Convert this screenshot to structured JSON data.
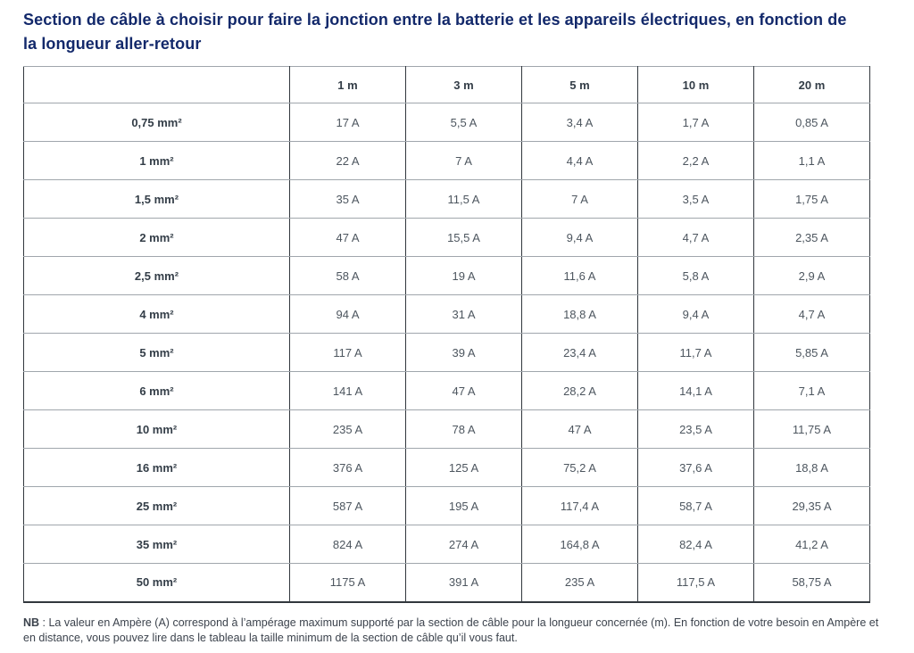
{
  "title": {
    "lines": [
      "Section de câble à choisir pour faire la jonction entre la batterie et les appareils électriques, en fonction de",
      "la longueur aller-retour"
    ]
  },
  "table": {
    "corner_label": "",
    "column_headers": [
      "1 m",
      "3 m",
      "5 m",
      "10 m",
      "20 m"
    ],
    "rows": [
      {
        "label": "0,75 mm²",
        "values": [
          "17 A",
          "5,5 A",
          "3,4 A",
          "1,7 A",
          "0,85 A"
        ]
      },
      {
        "label": "1 mm²",
        "values": [
          "22 A",
          "7 A",
          "4,4 A",
          "2,2 A",
          "1,1 A"
        ]
      },
      {
        "label": "1,5 mm²",
        "values": [
          "35 A",
          "11,5 A",
          "7 A",
          "3,5 A",
          "1,75 A"
        ]
      },
      {
        "label": "2 mm²",
        "values": [
          "47 A",
          "15,5 A",
          "9,4 A",
          "4,7 A",
          "2,35 A"
        ]
      },
      {
        "label": "2,5 mm²",
        "values": [
          "58 A",
          "19 A",
          "11,6 A",
          "5,8 A",
          "2,9 A"
        ]
      },
      {
        "label": "4 mm²",
        "values": [
          "94 A",
          "31 A",
          "18,8 A",
          "9,4 A",
          "4,7 A"
        ]
      },
      {
        "label": "5 mm²",
        "values": [
          "117 A",
          "39 A",
          "23,4 A",
          "11,7 A",
          "5,85 A"
        ]
      },
      {
        "label": "6 mm²",
        "values": [
          "141 A",
          "47 A",
          "28,2 A",
          "14,1 A",
          "7,1 A"
        ]
      },
      {
        "label": "10 mm²",
        "values": [
          "235 A",
          "78 A",
          "47 A",
          "23,5 A",
          "11,75 A"
        ]
      },
      {
        "label": "16 mm²",
        "values": [
          "376 A",
          "125 A",
          "75,2 A",
          "37,6 A",
          "18,8 A"
        ]
      },
      {
        "label": "25 mm²",
        "values": [
          "587 A",
          "195 A",
          "117,4 A",
          "58,7 A",
          "29,35 A"
        ]
      },
      {
        "label": "35 mm²",
        "values": [
          "824 A",
          "274 A",
          "164,8 A",
          "82,4 A",
          "41,2 A"
        ]
      },
      {
        "label": "50 mm²",
        "values": [
          "1175 A",
          "391 A",
          "235 A",
          "117,5 A",
          "58,75 A"
        ]
      }
    ]
  },
  "note": {
    "prefix": "NB",
    "text": " : La valeur en Ampère (A) correspond à l’ampérage maximum supporté par la section de câble pour la longueur concernée (m). En fonction de votre besoin en Ampère et en distance, vous pouvez lire dans le tableau la taille minimum de la section de câble qu’il vous faut."
  },
  "colors": {
    "title": "#13296b",
    "header_text": "#333d47",
    "value_text": "#4d565f",
    "border_horizontal": "#a0a6ac",
    "border_vertical": "#31373d",
    "background": "#ffffff"
  }
}
